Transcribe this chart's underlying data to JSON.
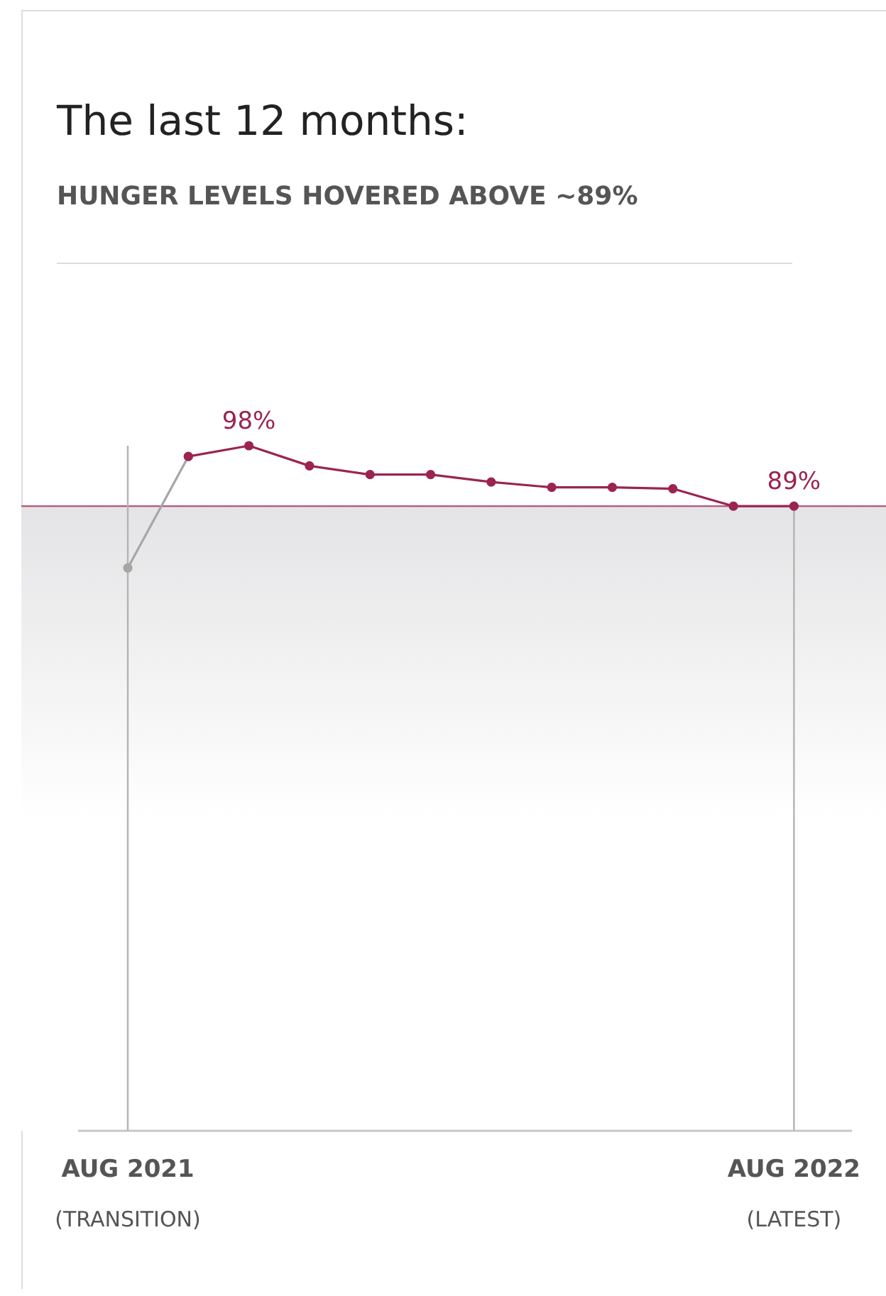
{
  "chart_data": {
    "type": "line",
    "title": "The last 12 months:",
    "subtitle": "HUNGER LEVELS HOVERED ABOVE ~89%",
    "categories": [
      "AUG 2021",
      null,
      null,
      null,
      null,
      null,
      null,
      null,
      null,
      null,
      null,
      "AUG 2022"
    ],
    "series": [
      {
        "color": "#a6a6a6",
        "values": [
          79.8,
          96.4,
          null,
          null,
          null,
          null,
          null,
          null,
          null,
          null,
          null,
          null
        ]
      },
      {
        "color": "#9b2450",
        "values": [
          null,
          96.4,
          98,
          95.0,
          93.7,
          93.7,
          92.6,
          91.8,
          91.8,
          91.6,
          89,
          89
        ],
        "value_labels": [
          null,
          null,
          "98%",
          null,
          null,
          null,
          null,
          null,
          null,
          null,
          null,
          "89%"
        ]
      }
    ],
    "tick_labels": "x",
    "legend": false,
    "grid": false,
    "marker": "circle",
    "line_style": "solid",
    "ref_lines": [
      {
        "axis": "y",
        "value": 89,
        "color": "#b5557a"
      },
      {
        "axis": "x",
        "value": "AUG 2021",
        "color": "#b3b3b3"
      },
      {
        "axis": "x",
        "value": "AUG 2022",
        "color": "#b3b3b3"
      }
    ],
    "bands": [
      {
        "axis": "y",
        "from": -4,
        "to": 89,
        "color": "#e4e4e6"
      }
    ],
    "annotations": [
      "(TRANSITION)",
      "(LATEST)"
    ]
  }
}
